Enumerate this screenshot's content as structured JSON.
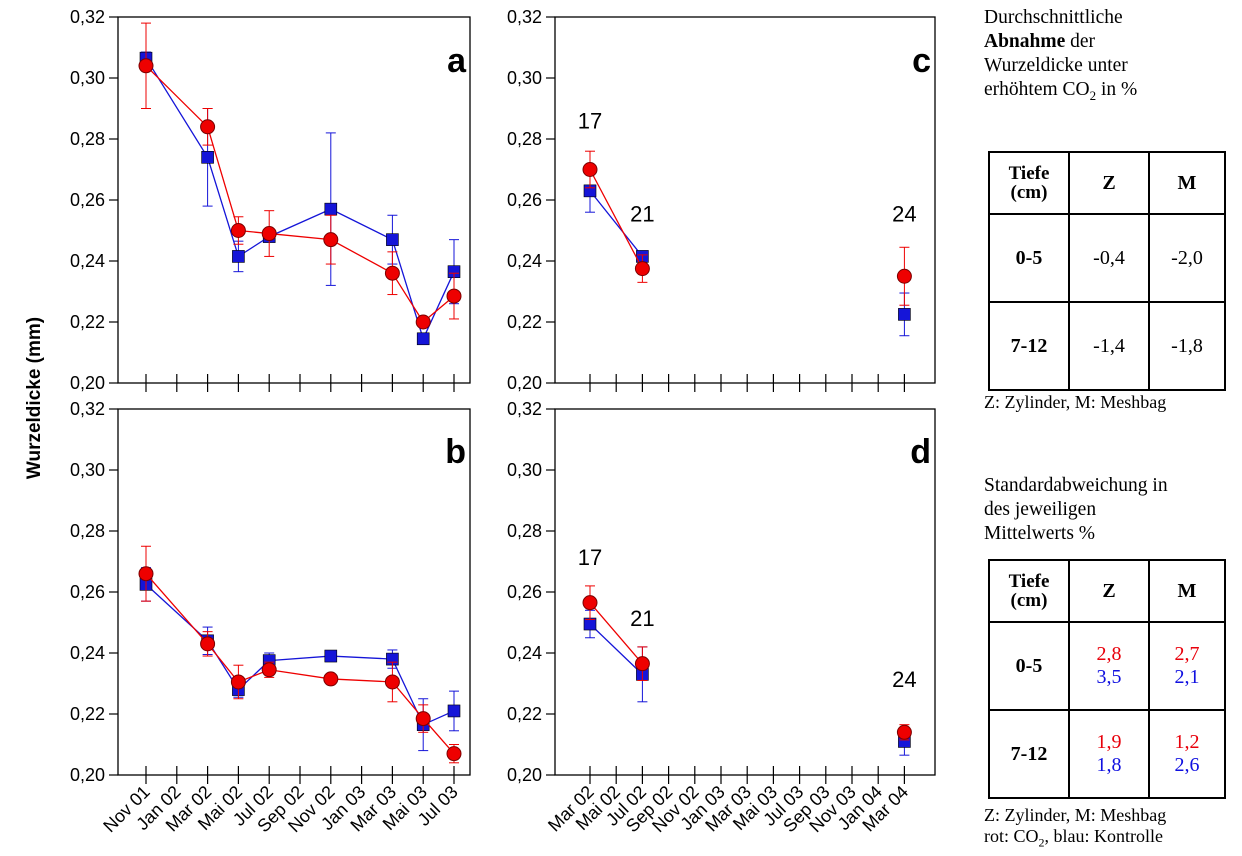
{
  "chart_data": [
    {
      "panel": "a",
      "type": "line",
      "x": [
        "Nov 01",
        "Jan 02",
        "Mar 02",
        "Mai 02",
        "Jul 02",
        "Sep 02",
        "Nov 02",
        "Jan 03",
        "Mar 03",
        "Mai 03",
        "Jul 03"
      ],
      "ylim": [
        0.2,
        0.32
      ],
      "yticks": [
        "0,20",
        "0,22",
        "0,24",
        "0,26",
        "0,28",
        "0,30",
        "0,32"
      ],
      "series": [
        {
          "color": "#ee0000",
          "marker": "circle",
          "points": [
            {
              "x": "Nov 01",
              "y": 0.304,
              "err": 0.014
            },
            {
              "x": "Mar 02",
              "y": 0.284,
              "err": 0.006
            },
            {
              "x": "Mai 02",
              "y": 0.25,
              "err": 0.0045
            },
            {
              "x": "Jul 02",
              "y": 0.249,
              "err": 0.0075
            },
            {
              "x": "Nov 02",
              "y": 0.247,
              "err": 0.008
            },
            {
              "x": "Mar 03",
              "y": 0.236,
              "err": 0.007
            },
            {
              "x": "Mai 03",
              "y": 0.22,
              "err": 0.0015
            },
            {
              "x": "Jul 03",
              "y": 0.2285,
              "err": 0.0075
            }
          ]
        },
        {
          "color": "#1515d8",
          "marker": "square",
          "points": [
            {
              "x": "Nov 01",
              "y": 0.3065,
              "err": 0.002
            },
            {
              "x": "Mar 02",
              "y": 0.274,
              "err": 0.016
            },
            {
              "x": "Mai 02",
              "y": 0.2415,
              "err": 0.005
            },
            {
              "x": "Jul 02",
              "y": 0.248,
              "err": 0.0015
            },
            {
              "x": "Nov 02",
              "y": 0.257,
              "err": 0.025
            },
            {
              "x": "Mar 03",
              "y": 0.247,
              "err": 0.008
            },
            {
              "x": "Mai 03",
              "y": 0.2145,
              "err": 0.001
            },
            {
              "x": "Jul 03",
              "y": 0.2365,
              "err": 0.0105
            }
          ]
        }
      ]
    },
    {
      "panel": "b",
      "type": "line",
      "x": [
        "Nov 01",
        "Jan 02",
        "Mar 02",
        "Mai 02",
        "Jul 02",
        "Sep 02",
        "Nov 02",
        "Jan 03",
        "Mar 03",
        "Mai 03",
        "Jul 03"
      ],
      "ylim": [
        0.2,
        0.32
      ],
      "yticks": [
        "0,20",
        "0,22",
        "0,24",
        "0,26",
        "0,28",
        "0,30",
        "0,32"
      ],
      "series": [
        {
          "color": "#ee0000",
          "marker": "circle",
          "points": [
            {
              "x": "Nov 01",
              "y": 0.266,
              "err": 0.009
            },
            {
              "x": "Mar 02",
              "y": 0.243,
              "err": 0.004
            },
            {
              "x": "Mai 02",
              "y": 0.2305,
              "err": 0.0055
            },
            {
              "x": "Jul 02",
              "y": 0.2345,
              "err": 0.0025
            },
            {
              "x": "Nov 02",
              "y": 0.2315,
              "err": 0.001
            },
            {
              "x": "Mar 03",
              "y": 0.2305,
              "err": 0.0065
            },
            {
              "x": "Mai 03",
              "y": 0.2185,
              "err": 0.0045
            },
            {
              "x": "Jul 03",
              "y": 0.207,
              "err": 0.003
            }
          ]
        },
        {
          "color": "#1515d8",
          "marker": "square",
          "points": [
            {
              "x": "Nov 01",
              "y": 0.2625,
              "err": 0.0055
            },
            {
              "x": "Mar 02",
              "y": 0.244,
              "err": 0.0045
            },
            {
              "x": "Mai 02",
              "y": 0.228,
              "err": 0.0025
            },
            {
              "x": "Jul 02",
              "y": 0.2375,
              "err": 0.0025
            },
            {
              "x": "Nov 02",
              "y": 0.239,
              "err": 0.001
            },
            {
              "x": "Mar 03",
              "y": 0.238,
              "err": 0.003
            },
            {
              "x": "Mai 03",
              "y": 0.2165,
              "err": 0.0085
            },
            {
              "x": "Jul 03",
              "y": 0.221,
              "err": 0.0065
            }
          ]
        }
      ]
    },
    {
      "panel": "c",
      "type": "line",
      "x": [
        "Mar 02",
        "Mai 02",
        "Jul 02",
        "Sep 02",
        "Nov 02",
        "Jan 03",
        "Mar 03",
        "Mai 03",
        "Jul 03",
        "Sep 03",
        "Nov 03",
        "Jan 04",
        "Mar 04"
      ],
      "ylim": [
        0.2,
        0.32
      ],
      "yticks": [
        "0,20",
        "0,22",
        "0,24",
        "0,26",
        "0,28",
        "0,30",
        "0,32"
      ],
      "annotations": [
        {
          "text": "17",
          "x": "Mar 02",
          "y": 0.286
        },
        {
          "text": "21",
          "x": "Jul 02",
          "y": 0.2555
        },
        {
          "text": "24",
          "x": "Mar 04",
          "y": 0.2555
        }
      ],
      "series": [
        {
          "color": "#ee0000",
          "marker": "circle",
          "points": [
            {
              "x": "Mar 02",
              "y": 0.27,
              "err": 0.006,
              "segment": 1
            },
            {
              "x": "Jul 02",
              "y": 0.2375,
              "err": 0.0045,
              "segment": 1
            },
            {
              "x": "Mar 04",
              "y": 0.235,
              "err": 0.0095,
              "segment": 2
            }
          ]
        },
        {
          "color": "#1515d8",
          "marker": "square",
          "points": [
            {
              "x": "Mar 02",
              "y": 0.263,
              "err": 0.007,
              "segment": 1
            },
            {
              "x": "Jul 02",
              "y": 0.2415,
              "err": 0.001,
              "segment": 1
            },
            {
              "x": "Mar 04",
              "y": 0.2225,
              "err": 0.007,
              "segment": 2
            }
          ]
        }
      ]
    },
    {
      "panel": "d",
      "type": "line",
      "x": [
        "Mar 02",
        "Mai 02",
        "Jul 02",
        "Sep 02",
        "Nov 02",
        "Jan 03",
        "Mar 03",
        "Mai 03",
        "Jul 03",
        "Sep 03",
        "Nov 03",
        "Jan 04",
        "Mar 04"
      ],
      "ylim": [
        0.2,
        0.32
      ],
      "yticks": [
        "0,20",
        "0,22",
        "0,24",
        "0,26",
        "0,28",
        "0,30",
        "0,32"
      ],
      "annotations": [
        {
          "text": "17",
          "x": "Mar 02",
          "y": 0.2715
        },
        {
          "text": "21",
          "x": "Jul 02",
          "y": 0.2515
        },
        {
          "text": "24",
          "x": "Mar 04",
          "y": 0.2315
        }
      ],
      "series": [
        {
          "color": "#ee0000",
          "marker": "circle",
          "points": [
            {
              "x": "Mar 02",
              "y": 0.2565,
              "err": 0.0055,
              "segment": 1
            },
            {
              "x": "Jul 02",
              "y": 0.2365,
              "err": 0.0055,
              "segment": 1
            },
            {
              "x": "Mar 04",
              "y": 0.214,
              "err": 0.0025,
              "segment": 2
            }
          ]
        },
        {
          "color": "#1515d8",
          "marker": "square",
          "points": [
            {
              "x": "Mar 02",
              "y": 0.2495,
              "err": 0.0045,
              "segment": 1
            },
            {
              "x": "Jul 02",
              "y": 0.233,
              "err": 0.009,
              "segment": 1
            },
            {
              "x": "Mar 04",
              "y": 0.211,
              "err": 0.0045,
              "segment": 2
            }
          ]
        }
      ]
    }
  ],
  "ylabel": "Wurzeldicke (mm)",
  "colors": {
    "red": "#ee0000",
    "blue": "#1515d8"
  },
  "side_panel": {
    "block1": {
      "title_line1": "Durchschnittliche",
      "title_bold": "Abnahme",
      "title_line2_rest": " der",
      "title_line3": "Wurzeldicke unter",
      "title_line4_pre": "erhöhtem CO",
      "title_line4_sub": "2",
      "title_line4_post": " in %",
      "table": {
        "header": {
          "depth": "Tiefe (cm)",
          "z": "Z",
          "m": "M"
        },
        "rows": [
          {
            "depth": "0-5",
            "z": "-0,4",
            "m": "-2,0"
          },
          {
            "depth": "7-12",
            "z": "-1,4",
            "m": "-1,8"
          }
        ]
      },
      "footnote": "Z: Zylinder, M: Meshbag"
    },
    "block2": {
      "title_line1": "Standardabweichung in",
      "title_line2": "des jeweiligen",
      "title_line3": "Mittelwerts %",
      "table": {
        "header": {
          "depth": "Tiefe (cm)",
          "z": "Z",
          "m": "M"
        },
        "rows": [
          {
            "depth": "0-5",
            "z_red": "2,8",
            "z_blue": "3,5",
            "m_red": "2,7",
            "m_blue": "2,1"
          },
          {
            "depth": "7-12",
            "z_red": "1,9",
            "z_blue": "1,8",
            "m_red": "1,2",
            "m_blue": "2,6"
          }
        ]
      },
      "footnote1": "Z: Zylinder, M: Meshbag",
      "footnote2_pre": "rot: CO",
      "footnote2_sub": "2",
      "footnote2_post": ", blau: Kontrolle"
    }
  }
}
